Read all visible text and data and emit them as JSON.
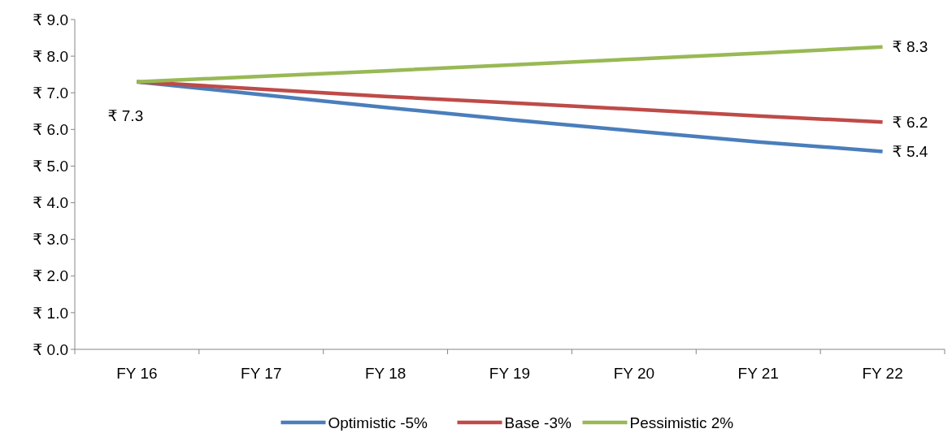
{
  "chart_data": {
    "type": "line",
    "categories": [
      "FY 16",
      "FY 17",
      "FY 18",
      "FY 19",
      "FY 20",
      "FY 21",
      "FY 22"
    ],
    "series": [
      {
        "name": "Optimistic -5%",
        "color": "#4a7ebb",
        "values": [
          7.3,
          6.95,
          6.6,
          6.27,
          5.96,
          5.66,
          5.4
        ],
        "value_labels": [
          "₹ 7.3",
          null,
          null,
          null,
          null,
          null,
          "₹ 5.4"
        ]
      },
      {
        "name": "Base -3%",
        "color": "#be4b48",
        "values": [
          7.3,
          7.1,
          6.9,
          6.73,
          6.55,
          6.37,
          6.2
        ],
        "value_labels": [
          null,
          null,
          null,
          null,
          null,
          null,
          "₹ 6.2"
        ]
      },
      {
        "name": "Pessimistic 2%",
        "color": "#98b954",
        "values": [
          7.3,
          7.45,
          7.6,
          7.76,
          7.92,
          8.08,
          8.25
        ],
        "value_labels": [
          null,
          null,
          null,
          null,
          null,
          null,
          "₹ 8.3"
        ]
      }
    ],
    "ylim": [
      0,
      9
    ],
    "yticks": [
      {
        "value": 0,
        "label": "₹ 0.0"
      },
      {
        "value": 1,
        "label": "₹ 1.0"
      },
      {
        "value": 2,
        "label": "₹ 2.0"
      },
      {
        "value": 3,
        "label": "₹ 3.0"
      },
      {
        "value": 4,
        "label": "₹ 4.0"
      },
      {
        "value": 5,
        "label": "₹ 5.0"
      },
      {
        "value": 6,
        "label": "₹ 6.0"
      },
      {
        "value": 7,
        "label": "₹ 7.0"
      },
      {
        "value": 8,
        "label": "₹ 8.0"
      },
      {
        "value": 9,
        "label": "₹ 9.0"
      }
    ],
    "grid": false,
    "legend": "bottom",
    "marker": "none",
    "line_style": "solid"
  }
}
